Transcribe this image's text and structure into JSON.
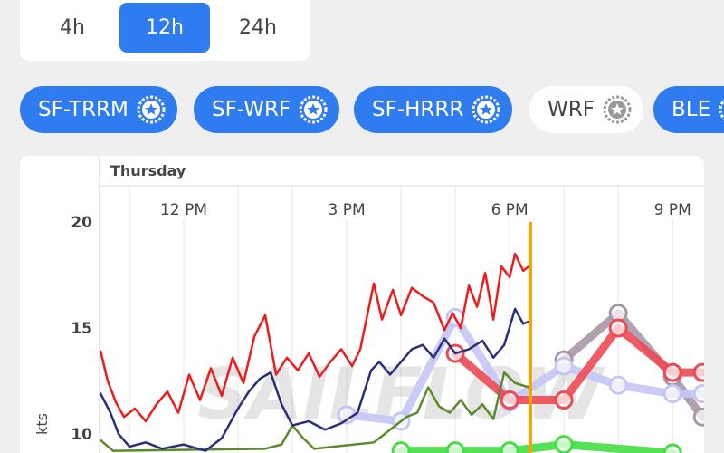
{
  "time_range": {
    "options": [
      "4h",
      "12h",
      "24h"
    ],
    "selected": 1
  },
  "models": [
    {
      "label": "SF-TRRM",
      "active": true
    },
    {
      "label": "SF-WRF",
      "active": true
    },
    {
      "label": "SF-HRRR",
      "active": true
    },
    {
      "label": "WRF",
      "active": false
    },
    {
      "label": "BLE",
      "active": true
    }
  ],
  "chart_data": {
    "type": "line",
    "day_label": "Thursday",
    "y_label": "kts",
    "watermark": "SAILFLOW",
    "xlim": [
      10.45,
      21.58
    ],
    "ylim": [
      9.1,
      21.5
    ],
    "xticks": [
      {
        "value": 12,
        "label": "12 PM"
      },
      {
        "value": 15,
        "label": "3 PM"
      },
      {
        "value": 18,
        "label": "6 PM"
      },
      {
        "value": 21,
        "label": "9 PM"
      }
    ],
    "minor_xticks": [
      11,
      13,
      14,
      16,
      17,
      19,
      20
    ],
    "yticks": [
      10,
      15,
      20
    ],
    "now": 18.38,
    "now_color": "#f5a300",
    "series": [
      {
        "color": "#a898a8",
        "markers": true,
        "width": 9,
        "x": [
          19,
          20,
          21,
          21.55
        ],
        "values": [
          13.5,
          15.7,
          12.7,
          10.8
        ]
      },
      {
        "color": "#c4c6f6",
        "markers": true,
        "width": 9,
        "x": [
          15,
          16,
          17,
          18,
          19,
          20,
          21,
          21.55
        ],
        "values": [
          10.9,
          10.6,
          15.5,
          11.5,
          13.2,
          12.3,
          11.9,
          11.9
        ]
      },
      {
        "color": "#ec4a55",
        "markers": true,
        "width": 9,
        "x": [
          17,
          18,
          19,
          20,
          21,
          21.55
        ],
        "values": [
          13.8,
          11.6,
          11.6,
          15,
          12.9,
          12.9
        ]
      },
      {
        "color": "#44dd44",
        "markers": true,
        "width": 9,
        "x": [
          16,
          17,
          18,
          19,
          21
        ],
        "values": [
          9.2,
          9.2,
          9.2,
          9.5,
          9.1
        ]
      },
      {
        "color": "#5a8a2a",
        "markers": false,
        "width": 2.5,
        "x": [
          10.47,
          10.7,
          13.5,
          13.8,
          14.0,
          14.2,
          14.4,
          15.5,
          15.9,
          16.1,
          16.3,
          16.5,
          16.7,
          16.9,
          17.1,
          17.3,
          17.5,
          17.7,
          17.9,
          18.1,
          18.35
        ],
        "values": [
          9.7,
          9.2,
          9.3,
          9.5,
          10.4,
          9.8,
          9.3,
          9.6,
          10.4,
          10.8,
          11.0,
          12.2,
          11.3,
          11.0,
          11.6,
          10.9,
          11.4,
          10.7,
          12.9,
          12.4,
          12.2
        ]
      },
      {
        "color": "#2a2f7a",
        "markers": false,
        "width": 2.5,
        "x": [
          10.47,
          10.65,
          10.8,
          11.0,
          11.3,
          11.6,
          12.0,
          12.4,
          12.7,
          13.0,
          13.2,
          13.4,
          13.6,
          13.8,
          14.0,
          14.3,
          14.6,
          14.9,
          15.2,
          15.45,
          15.6,
          15.8,
          16.0,
          16.2,
          16.4,
          16.6,
          16.8,
          17.0,
          17.25,
          17.5,
          17.7,
          17.9,
          18.1,
          18.25,
          18.35
        ],
        "values": [
          11.9,
          11.0,
          10.0,
          9.4,
          9.6,
          9.3,
          9.5,
          9.2,
          9.8,
          11.2,
          12.0,
          12.6,
          12.9,
          11.4,
          10.4,
          10.6,
          10.2,
          10.5,
          11.0,
          13.0,
          13.4,
          12.8,
          13.4,
          14.0,
          14.2,
          13.6,
          14.5,
          13.8,
          14.0,
          14.4,
          13.6,
          14.2,
          15.9,
          15.2,
          15.3
        ]
      },
      {
        "color": "#ee1c1c",
        "markers": false,
        "width": 2.5,
        "x": [
          10.47,
          10.6,
          10.75,
          10.9,
          11.1,
          11.3,
          11.5,
          11.7,
          11.9,
          12.1,
          12.3,
          12.5,
          12.7,
          12.9,
          13.1,
          13.3,
          13.5,
          13.7,
          13.9,
          14.1,
          14.3,
          14.5,
          14.7,
          14.9,
          15.1,
          15.25,
          15.5,
          15.65,
          15.85,
          16.0,
          16.2,
          16.4,
          16.6,
          16.8,
          16.95,
          17.1,
          17.25,
          17.4,
          17.55,
          17.7,
          17.85,
          18.0,
          18.1,
          18.25,
          18.35
        ],
        "values": [
          13.9,
          12.5,
          11.5,
          10.8,
          11.2,
          10.6,
          11.4,
          12.0,
          11.0,
          12.8,
          11.6,
          13.1,
          11.8,
          13.6,
          12.4,
          14.6,
          15.6,
          12.8,
          13.6,
          13.0,
          13.8,
          12.7,
          13.4,
          14.0,
          13.2,
          14.0,
          17.1,
          15.4,
          16.8,
          15.6,
          16.9,
          16.5,
          16.2,
          14.9,
          15.7,
          15.0,
          17.0,
          16.0,
          17.6,
          15.4,
          17.9,
          17.4,
          18.5,
          17.7,
          17.9
        ]
      }
    ]
  }
}
